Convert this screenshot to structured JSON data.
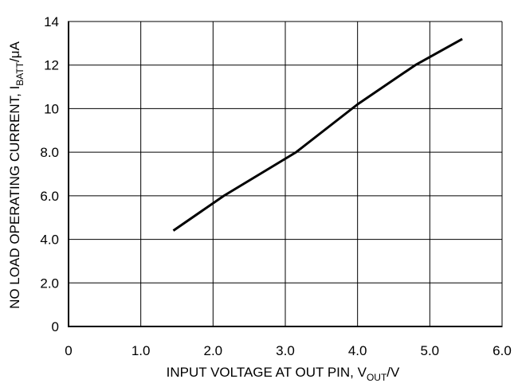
{
  "chart_data": {
    "type": "line",
    "title": "",
    "xlabel": {
      "main": "INPUT VOLTAGE AT OUT PIN, V",
      "subscript": "OUT",
      "suffix": "/V"
    },
    "ylabel": {
      "main": "NO LOAD OPERATING CURRENT, I",
      "subscript": "BATT",
      "suffix": "/μA"
    },
    "xlim": [
      0,
      6
    ],
    "ylim": [
      0,
      14
    ],
    "grid": true,
    "x_ticks": [
      {
        "value": 0,
        "label": "0"
      },
      {
        "value": 1,
        "label": "1.0"
      },
      {
        "value": 2,
        "label": "2.0"
      },
      {
        "value": 3,
        "label": "3.0"
      },
      {
        "value": 4,
        "label": "4.0"
      },
      {
        "value": 5,
        "label": "5.0"
      },
      {
        "value": 6,
        "label": "6.0"
      }
    ],
    "y_ticks": [
      {
        "value": 0,
        "label": "0"
      },
      {
        "value": 2,
        "label": "2.0"
      },
      {
        "value": 4,
        "label": "4.0"
      },
      {
        "value": 6,
        "label": "6.0"
      },
      {
        "value": 8,
        "label": "8.0"
      },
      {
        "value": 10,
        "label": "10"
      },
      {
        "value": 12,
        "label": "12"
      },
      {
        "value": 14,
        "label": "14"
      }
    ],
    "series": [
      {
        "color": "#000000",
        "x": [
          1.45,
          2.15,
          3.15,
          4.0,
          4.8,
          5.45
        ],
        "y": [
          4.4,
          6.0,
          8.0,
          10.2,
          12.0,
          13.2
        ]
      }
    ]
  }
}
